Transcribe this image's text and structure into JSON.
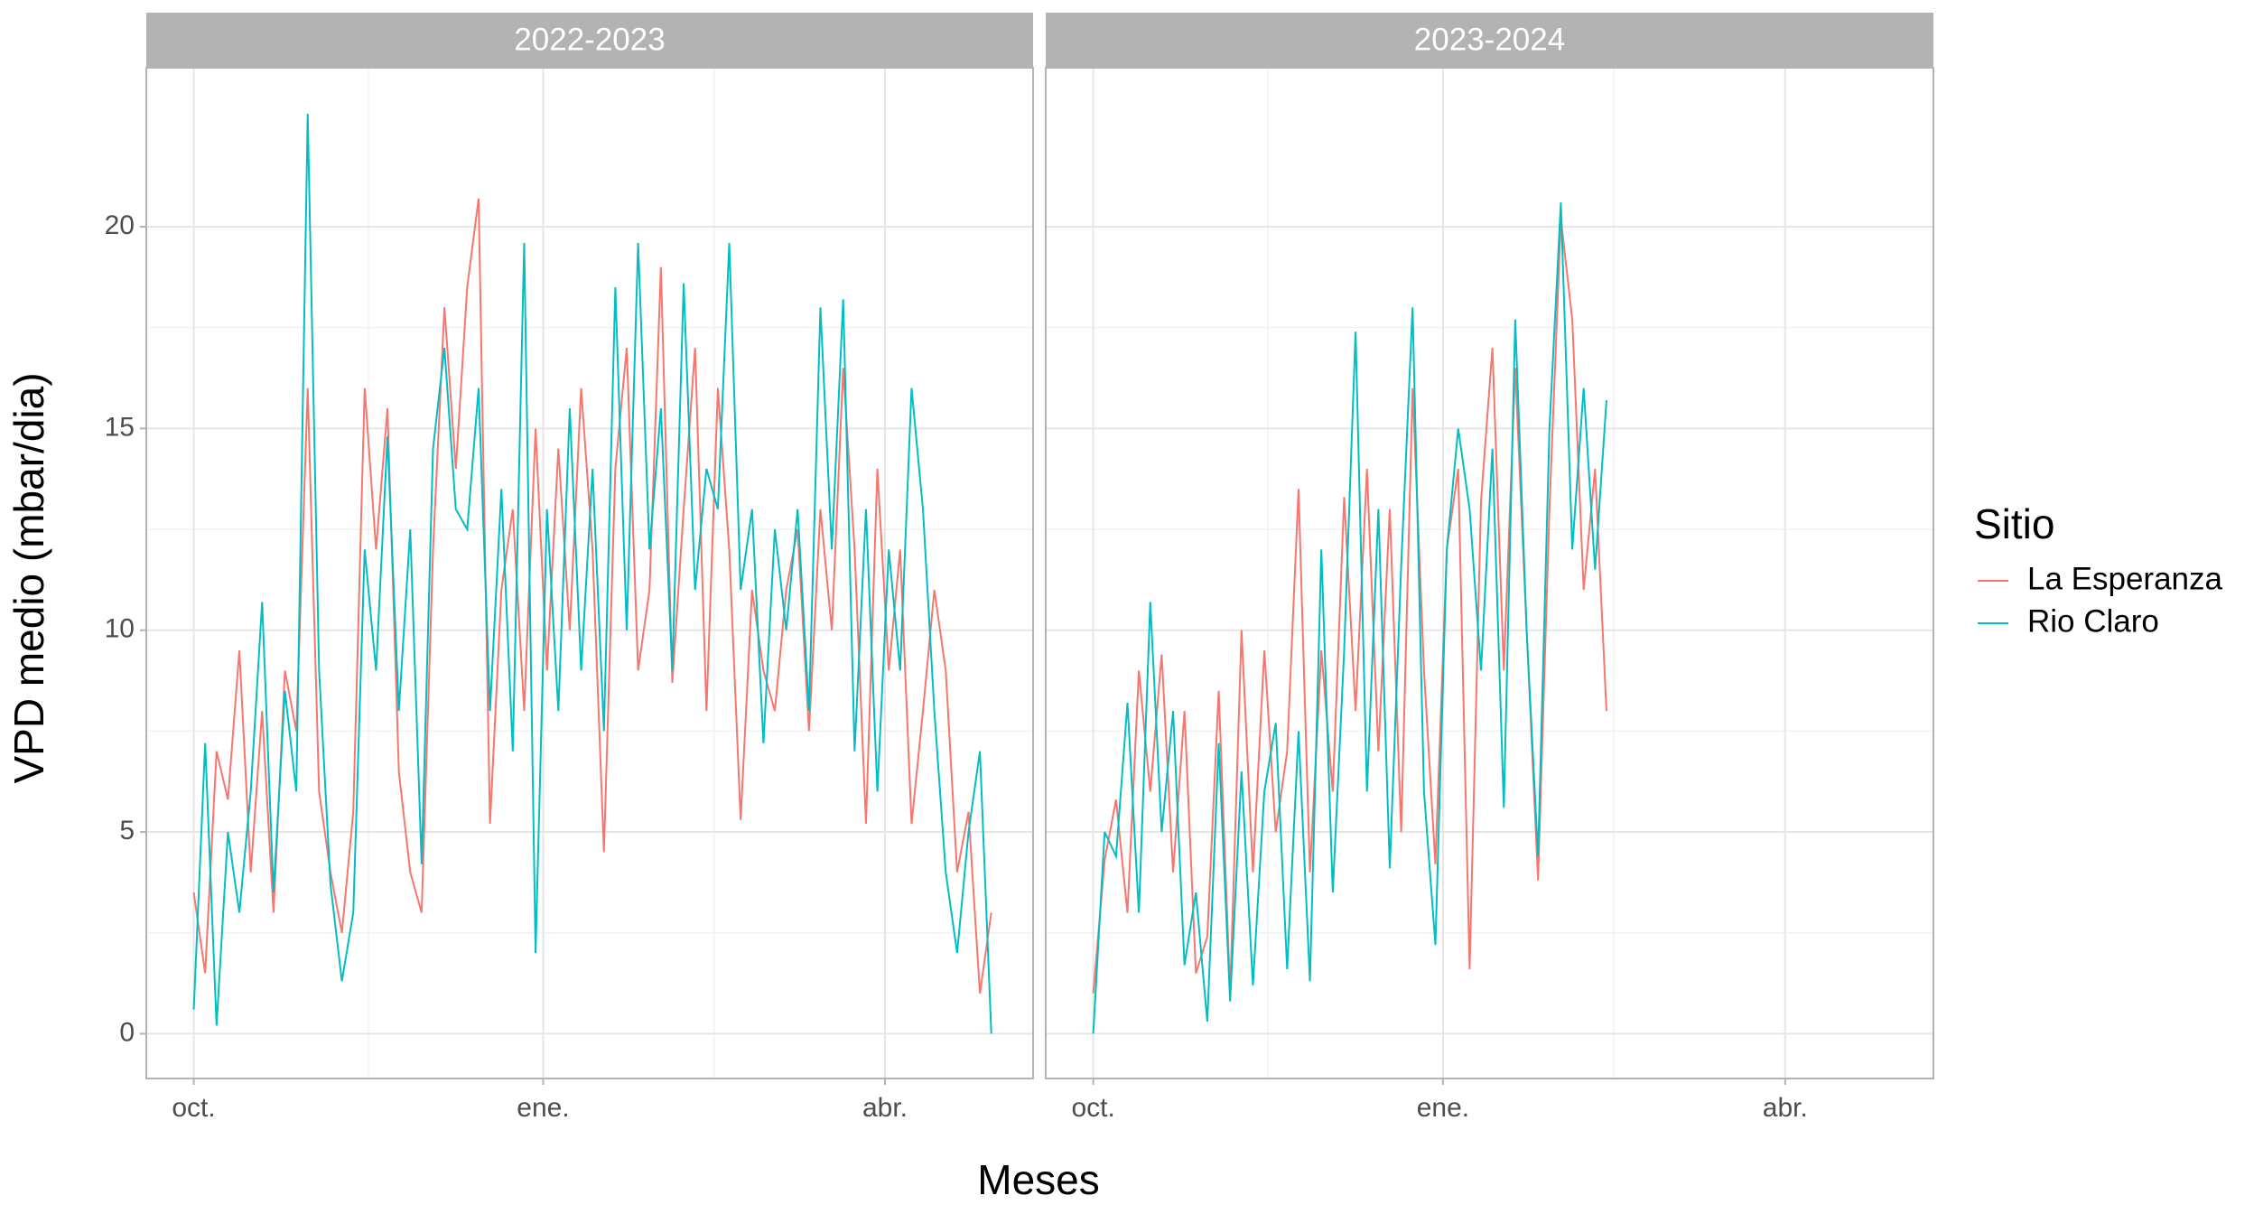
{
  "chart_data": [
    {
      "type": "line",
      "title": "2022-2023",
      "x_label": "Meses",
      "y_label": "VPD medio (mbar/dia)",
      "legend_title": "Sitio",
      "xlim": [
        -12.5,
        221
      ],
      "ylim": [
        -1.11,
        23.94
      ],
      "xticks": [
        {
          "value": 0,
          "label": "oct."
        },
        {
          "value": 92,
          "label": "ene."
        },
        {
          "value": 182,
          "label": "abr."
        }
      ],
      "yticks": [
        0,
        5,
        10,
        15,
        20
      ],
      "grid": true,
      "x": [
        0,
        3,
        6,
        9,
        12,
        15,
        18,
        21,
        24,
        27,
        30,
        33,
        36,
        39,
        42,
        45,
        48,
        51,
        54,
        57,
        60,
        63,
        66,
        69,
        72,
        75,
        78,
        81,
        84,
        87,
        90,
        93,
        96,
        99,
        102,
        105,
        108,
        111,
        114,
        117,
        120,
        123,
        126,
        129,
        132,
        135,
        138,
        141,
        144,
        147,
        150,
        153,
        156,
        159,
        162,
        165,
        168,
        171,
        174,
        177,
        180,
        183,
        186,
        189,
        192,
        195,
        198,
        201,
        204,
        207,
        210
      ],
      "series": [
        {
          "name": "La Esperanza",
          "color": "#f8766d",
          "values": [
            3.5,
            1.5,
            7,
            5.8,
            9.5,
            4,
            8,
            3,
            9,
            7.5,
            16,
            6,
            4,
            2.5,
            5.5,
            16,
            12,
            15.5,
            6.5,
            4,
            3,
            12,
            18,
            14,
            18.5,
            20.7,
            5.2,
            11,
            13,
            8,
            15,
            9,
            14.5,
            10,
            16,
            12,
            4.5,
            14,
            17,
            9,
            11,
            19,
            8.7,
            13,
            17,
            8,
            16,
            12,
            5.3,
            11,
            9,
            8,
            11,
            12.5,
            7.5,
            13,
            10,
            16.5,
            12,
            5.2,
            14,
            9,
            12,
            5.2,
            8,
            11,
            9,
            4,
            5.5,
            1,
            3
          ]
        },
        {
          "name": "Rio Claro",
          "color": "#00bfc4",
          "values": [
            0.6,
            7.2,
            0.2,
            5,
            3,
            6,
            10.7,
            3.5,
            8.5,
            6,
            22.8,
            9,
            3.7,
            1.3,
            3,
            12,
            9,
            14.8,
            8,
            12.5,
            4.2,
            14.5,
            17,
            13,
            12.5,
            16,
            8,
            13.5,
            7,
            19.6,
            2,
            13,
            8,
            15.5,
            9,
            14,
            7.5,
            18.5,
            10,
            19.6,
            12,
            15.5,
            9,
            18.6,
            11,
            14,
            13,
            19.6,
            11,
            13,
            7.2,
            12.5,
            10,
            13,
            8,
            18,
            12,
            18.2,
            7,
            13,
            6,
            12,
            9,
            16,
            13,
            8,
            4,
            2,
            5,
            7,
            0
          ]
        }
      ]
    },
    {
      "type": "line",
      "title": "2023-2024",
      "xlim": [
        -12.5,
        221
      ],
      "ylim": [
        -1.11,
        23.94
      ],
      "xticks": [
        {
          "value": 0,
          "label": "oct."
        },
        {
          "value": 92,
          "label": "ene."
        },
        {
          "value": 182,
          "label": "abr."
        }
      ],
      "yticks": [
        0,
        5,
        10,
        15,
        20
      ],
      "grid": true,
      "x": [
        0,
        3,
        6,
        9,
        12,
        15,
        18,
        21,
        24,
        27,
        30,
        33,
        36,
        39,
        42,
        45,
        48,
        51,
        54,
        57,
        60,
        63,
        66,
        69,
        72,
        75,
        78,
        81,
        84,
        87,
        90,
        93,
        96,
        99,
        102,
        105,
        108,
        111,
        114,
        117,
        120,
        123,
        126,
        129,
        132,
        135
      ],
      "series": [
        {
          "color": "#f8766d",
          "values": [
            1,
            4.3,
            5.8,
            3,
            9,
            6,
            9.4,
            4,
            8,
            1.5,
            2.4,
            8.5,
            1,
            10,
            4,
            9.5,
            5,
            7,
            13.5,
            4,
            9.5,
            6,
            13.3,
            8,
            14,
            7,
            13,
            5,
            16,
            9,
            4.2,
            12,
            14,
            1.6,
            13.2,
            17,
            9,
            16.5,
            10,
            3.8,
            13,
            20.2,
            17.7,
            11,
            14,
            8
          ]
        },
        {
          "color": "#00bfc4",
          "values": [
            0,
            5,
            4.4,
            8.2,
            3,
            10.7,
            5,
            8,
            1.7,
            3.5,
            0.3,
            7.2,
            0.8,
            6.5,
            1.2,
            6,
            7.7,
            1.6,
            7.5,
            1.3,
            12,
            3.5,
            9.5,
            17.4,
            6,
            13,
            4.1,
            11.6,
            18,
            6,
            2.2,
            12,
            15,
            13,
            9,
            14.5,
            5.6,
            17.7,
            10,
            4.4,
            15,
            20.6,
            12,
            16,
            11.5,
            15.7
          ]
        }
      ]
    }
  ]
}
